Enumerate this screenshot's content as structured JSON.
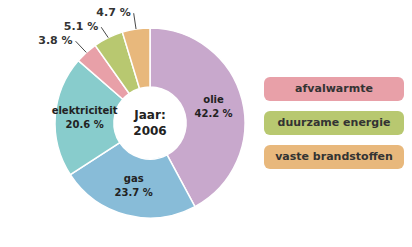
{
  "chart_data": {
    "type": "donut",
    "categories": [
      "olie",
      "gas",
      "elektriciteit",
      "afvalwarmte",
      "duurzame energie",
      "vaste brandstoffen"
    ],
    "values": [
      42.2,
      23.7,
      20.6,
      3.8,
      5.1,
      4.7
    ],
    "colors": [
      "#c8a8cc",
      "#88bcd8",
      "#88cccc",
      "#e8a0a8",
      "#b8c870",
      "#e8b87c"
    ],
    "data_labels": true,
    "value_labels": [
      "42.2 %",
      "23.7 %",
      "20.6 %",
      "3.8 %",
      "5.1 %",
      "4.7 %"
    ],
    "annotations": [
      "Jaar:",
      "2006"
    ],
    "legend": "right"
  }
}
